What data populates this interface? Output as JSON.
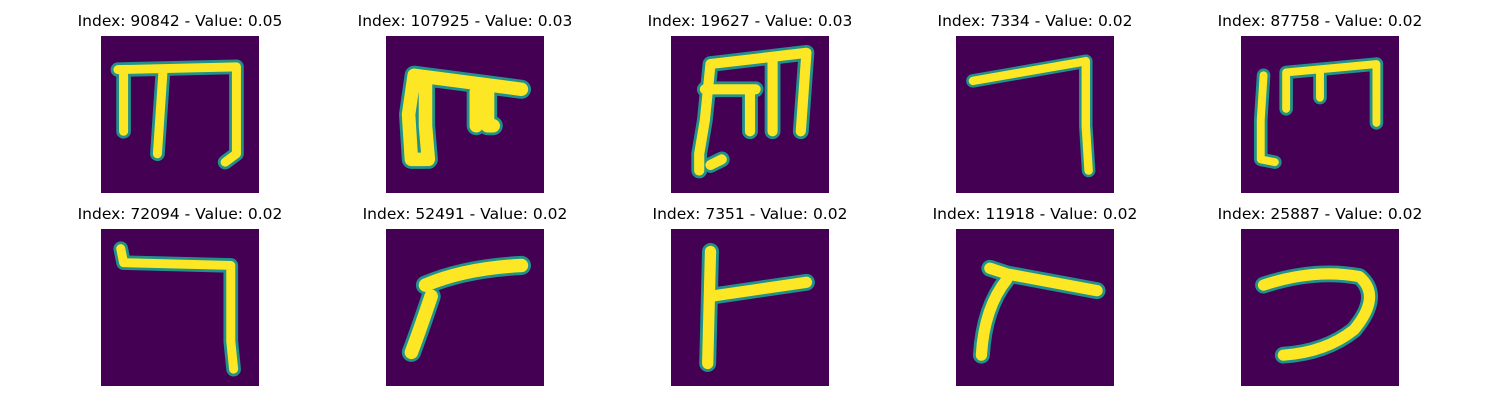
{
  "figure": {
    "background": "#ffffff",
    "colormap": {
      "low": "#440154",
      "mid": "#21918c",
      "edge": "#5ec962",
      "high": "#fde725"
    },
    "panels": [
      {
        "title": "Index: 90842 - Value: 0.05",
        "glyph": "m-shape-three-legs"
      },
      {
        "title": "Index: 107925 - Value: 0.03",
        "glyph": "thick-m-shape"
      },
      {
        "title": "Index: 19627 - Value: 0.03",
        "glyph": "m-shape-tall"
      },
      {
        "title": "Index: 7334 - Value: 0.02",
        "glyph": "seven-shape"
      },
      {
        "title": "Index: 87758 - Value: 0.02",
        "glyph": "m-shape-open"
      },
      {
        "title": "Index: 72094 - Value: 0.02",
        "glyph": "seven-shape-hooked"
      },
      {
        "title": "Index: 52491 - Value: 0.02",
        "glyph": "curved-gamma"
      },
      {
        "title": "Index: 7351 - Value: 0.02",
        "glyph": "t-shape"
      },
      {
        "title": "Index: 11918 - Value: 0.02",
        "glyph": "bent-lambda"
      },
      {
        "title": "Index: 25887 - Value: 0.02",
        "glyph": "reversed-c-hook"
      }
    ]
  }
}
